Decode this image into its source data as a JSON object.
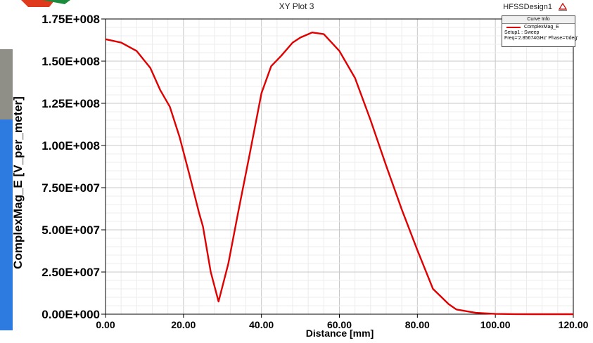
{
  "window": {
    "plot_title": "XY Plot 3",
    "design_name": "HFSSDesign1",
    "logo_icon": "ansoft-logo-icon"
  },
  "colors": {
    "curve": "#e00000",
    "grid": "#cfcfcf",
    "plot_border": "#000000"
  },
  "legend": {
    "header": "Curve Info",
    "entry_name": "ComplexMag_E",
    "setup": "Setup1 : Sweep",
    "freq": "Freq='2.85674GHz' Phase='0deg'"
  },
  "chart_data": {
    "type": "line",
    "title": "XY Plot 3",
    "xlabel": "Distance [mm]",
    "ylabel": "ComplexMag_E [V_per_meter]",
    "xlim": [
      0,
      120
    ],
    "ylim": [
      0,
      175000000
    ],
    "x_tick_labels": [
      "0.00",
      "20.00",
      "40.00",
      "60.00",
      "80.00",
      "100.00",
      "120.00"
    ],
    "y_tick_labels": [
      "0.00E+000",
      "2.50E+007",
      "5.00E+007",
      "7.50E+007",
      "1.00E+008",
      "1.25E+008",
      "1.50E+008",
      "1.75E+008"
    ],
    "grid": true,
    "legend_position": "top-right",
    "series": [
      {
        "name": "ComplexMag_E",
        "x": [
          0,
          4,
          8,
          11.5,
          14,
          16.5,
          19,
          21.5,
          24,
          25,
          27,
          29,
          31.5,
          34,
          37,
          40,
          42.5,
          45,
          48,
          50,
          52,
          53,
          56,
          60,
          64,
          68,
          72,
          76,
          80,
          84,
          88,
          90,
          95,
          100,
          105,
          110,
          120
        ],
        "y": [
          163000000,
          161000000,
          156000000,
          146000000,
          133000000,
          123000000,
          105000000,
          83000000,
          60000000,
          52000000,
          25000000,
          7500000,
          30000000,
          60000000,
          95000000,
          131000000,
          147000000,
          153000000,
          161000000,
          164000000,
          166000000,
          167000000,
          166000000,
          156000000,
          140000000,
          115000000,
          88000000,
          62000000,
          38000000,
          15000000,
          6000000,
          2800000,
          800000,
          150000,
          50000,
          0,
          0
        ]
      }
    ]
  }
}
